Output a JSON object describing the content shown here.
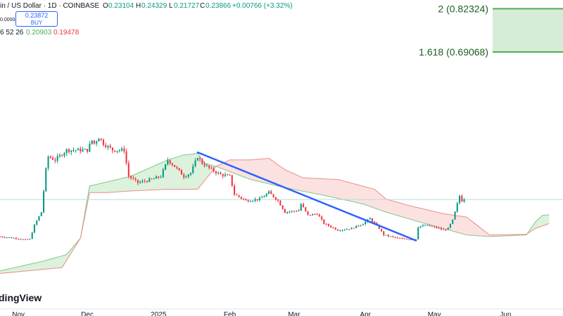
{
  "header": {
    "symbol_title": "in / US Dollar · 1D · COINBASE",
    "ohlc": {
      "open_label": "O",
      "open": "0.23104",
      "high_label": "H",
      "high": "0.24329",
      "low_label": "L",
      "low": "0.21727",
      "close_label": "C",
      "close": "0.23866",
      "change": "+0.00766 (+3.32%)"
    },
    "spread_value": "0.00004",
    "buy_price": "0.23872",
    "buy_label": "BUY",
    "ichimoku_params": "6 52 26",
    "ichimoku_span_a": "0.20903",
    "ichimoku_span_b": "0.19478"
  },
  "watermark": "dingView",
  "colors": {
    "up": "#089981",
    "down": "#f23645",
    "trendline": "#2962ff",
    "cloud_bull_fill": "#d6f0d6",
    "cloud_bear_fill": "#fbdcdc",
    "span_a_line": "#81c784",
    "span_b_line": "#ef8a8a",
    "fib": "#4caf50",
    "price_line": "#b2dfdb"
  },
  "chart_data": {
    "type": "candlestick",
    "symbol": "US Dollar",
    "exchange": "COINBASE",
    "timeframe": "1D",
    "x_ticks": [
      "Nov",
      "Dec",
      "2025",
      "Feb",
      "Mar",
      "Apr",
      "May",
      "Jun"
    ],
    "x_tick_dates": [
      "2024-11-01",
      "2024-12-01",
      "2025-01-01",
      "2025-02-01",
      "2025-03-01",
      "2025-04-01",
      "2025-05-01",
      "2025-06-01"
    ],
    "x_range": [
      "2024-10-24",
      "2025-06-26"
    ],
    "y_range": [
      0.0,
      0.85
    ],
    "fib_levels": [
      {
        "label": "2 (0.82324)",
        "value": 0.82324
      },
      {
        "label": "1.618 (0.69068)",
        "value": 0.69068
      }
    ],
    "trendline": {
      "start": {
        "date": "2025-01-18",
        "value": 0.383
      },
      "end": {
        "date": "2025-04-23",
        "value": 0.113
      }
    },
    "current_price": 0.23866,
    "price_keyframes": [
      [
        "2024-10-24",
        0.125
      ],
      [
        "2024-11-01",
        0.119
      ],
      [
        "2024-11-04",
        0.115
      ],
      [
        "2024-11-06",
        0.117
      ],
      [
        "2024-11-08",
        0.16
      ],
      [
        "2024-11-11",
        0.2
      ],
      [
        "2024-11-13",
        0.33
      ],
      [
        "2024-11-14",
        0.37
      ],
      [
        "2024-11-17",
        0.36
      ],
      [
        "2024-11-22",
        0.39
      ],
      [
        "2024-12-01",
        0.39
      ],
      [
        "2024-12-03",
        0.42
      ],
      [
        "2024-12-04",
        0.41
      ],
      [
        "2024-12-06",
        0.43
      ],
      [
        "2024-12-08",
        0.41
      ],
      [
        "2024-12-12",
        0.39
      ],
      [
        "2024-12-17",
        0.39
      ],
      [
        "2024-12-19",
        0.31
      ],
      [
        "2024-12-23",
        0.29
      ],
      [
        "2024-12-29",
        0.3
      ],
      [
        "2025-01-02",
        0.31
      ],
      [
        "2025-01-05",
        0.36
      ],
      [
        "2025-01-08",
        0.34
      ],
      [
        "2025-01-12",
        0.31
      ],
      [
        "2025-01-15",
        0.32
      ],
      [
        "2025-01-18",
        0.37
      ],
      [
        "2025-01-20",
        0.35
      ],
      [
        "2025-01-24",
        0.33
      ],
      [
        "2025-01-28",
        0.315
      ],
      [
        "2025-02-01",
        0.31
      ],
      [
        "2025-02-03",
        0.255
      ],
      [
        "2025-02-08",
        0.235
      ],
      [
        "2025-02-14",
        0.24
      ],
      [
        "2025-02-18",
        0.26
      ],
      [
        "2025-02-22",
        0.235
      ],
      [
        "2025-02-25",
        0.2
      ],
      [
        "2025-03-03",
        0.205
      ],
      [
        "2025-03-04",
        0.225
      ],
      [
        "2025-03-07",
        0.19
      ],
      [
        "2025-03-11",
        0.195
      ],
      [
        "2025-03-14",
        0.165
      ],
      [
        "2025-03-20",
        0.145
      ],
      [
        "2025-03-26",
        0.15
      ],
      [
        "2025-03-31",
        0.165
      ],
      [
        "2025-04-03",
        0.18
      ],
      [
        "2025-04-07",
        0.15
      ],
      [
        "2025-04-09",
        0.13
      ],
      [
        "2025-04-12",
        0.125
      ],
      [
        "2025-04-15",
        0.12
      ],
      [
        "2025-04-20",
        0.117
      ],
      [
        "2025-04-23",
        0.118
      ],
      [
        "2025-04-24",
        0.155
      ],
      [
        "2025-04-27",
        0.16
      ],
      [
        "2025-05-02",
        0.152
      ],
      [
        "2025-05-05",
        0.145
      ],
      [
        "2025-05-07",
        0.15
      ],
      [
        "2025-05-09",
        0.175
      ],
      [
        "2025-05-11",
        0.225
      ],
      [
        "2025-05-12",
        0.25
      ],
      [
        "2025-05-13",
        0.235
      ],
      [
        "2025-05-14",
        0.239
      ]
    ],
    "ichimoku_span_a_points": [
      [
        "2024-10-24",
        0.02
      ],
      [
        "2024-11-12",
        0.05
      ],
      [
        "2024-11-22",
        0.07
      ],
      [
        "2024-11-28",
        0.12
      ],
      [
        "2024-12-02",
        0.28
      ],
      [
        "2024-12-08",
        0.29
      ],
      [
        "2024-12-20",
        0.31
      ],
      [
        "2025-01-05",
        0.36
      ],
      [
        "2025-01-12",
        0.375
      ],
      [
        "2025-01-18",
        0.38
      ],
      [
        "2025-01-21",
        0.35
      ],
      [
        "2025-01-26",
        0.34
      ],
      [
        "2025-02-10",
        0.3
      ],
      [
        "2025-02-25",
        0.275
      ],
      [
        "2025-03-15",
        0.25
      ],
      [
        "2025-03-31",
        0.225
      ],
      [
        "2025-04-10",
        0.2
      ],
      [
        "2025-04-22",
        0.175
      ],
      [
        "2025-05-05",
        0.15
      ],
      [
        "2025-05-15",
        0.13
      ],
      [
        "2025-05-25",
        0.125
      ],
      [
        "2025-06-10",
        0.13
      ],
      [
        "2025-06-14",
        0.17
      ],
      [
        "2025-06-17",
        0.19
      ],
      [
        "2025-06-20",
        0.192
      ]
    ],
    "ichimoku_span_b_points": [
      [
        "2024-10-24",
        0.012
      ],
      [
        "2024-11-20",
        0.03
      ],
      [
        "2024-11-28",
        0.12
      ],
      [
        "2024-12-02",
        0.26
      ],
      [
        "2024-12-10",
        0.26
      ],
      [
        "2024-12-20",
        0.265
      ],
      [
        "2025-01-05",
        0.27
      ],
      [
        "2025-01-18",
        0.27
      ],
      [
        "2025-01-26",
        0.34
      ],
      [
        "2025-02-01",
        0.36
      ],
      [
        "2025-02-10",
        0.36
      ],
      [
        "2025-02-18",
        0.365
      ],
      [
        "2025-02-25",
        0.33
      ],
      [
        "2025-03-05",
        0.305
      ],
      [
        "2025-03-20",
        0.3
      ],
      [
        "2025-04-05",
        0.27
      ],
      [
        "2025-04-10",
        0.24
      ],
      [
        "2025-04-20",
        0.22
      ],
      [
        "2025-05-05",
        0.195
      ],
      [
        "2025-05-15",
        0.185
      ],
      [
        "2025-05-25",
        0.13
      ],
      [
        "2025-06-10",
        0.132
      ],
      [
        "2025-06-14",
        0.15
      ],
      [
        "2025-06-20",
        0.165
      ]
    ]
  }
}
